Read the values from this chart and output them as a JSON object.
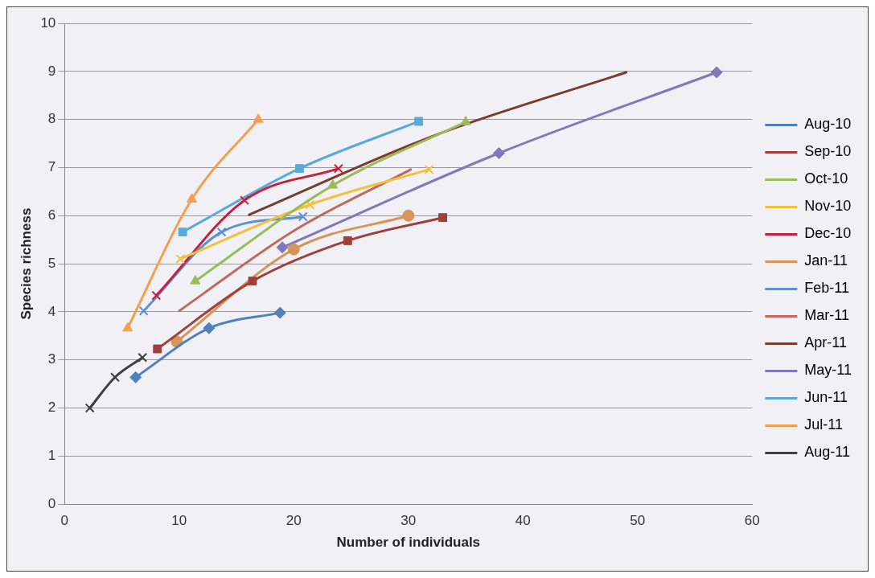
{
  "chart_data": {
    "type": "line",
    "xlabel": "Number of individuals",
    "ylabel": "Species richness",
    "xlim": [
      0,
      60
    ],
    "xticks": [
      0,
      10,
      20,
      30,
      40,
      50,
      60
    ],
    "ylim": [
      0,
      10
    ],
    "yticks": [
      0,
      1,
      2,
      3,
      4,
      5,
      6,
      7,
      8,
      9,
      10
    ],
    "grid": "y",
    "legend": "right",
    "line_style": "solid",
    "series": [
      {
        "name": "Aug-10",
        "color": "#4f81bd",
        "marker": "diamond",
        "x": [
          6.2,
          12.6,
          18.8
        ],
        "values": [
          2.64,
          3.66,
          3.98
        ]
      },
      {
        "name": "Sep-10",
        "color": "#a0403d",
        "marker": "square",
        "x": [
          8.1,
          16.4,
          24.7,
          33.0
        ],
        "values": [
          3.23,
          4.64,
          5.48,
          5.96
        ]
      },
      {
        "name": "Oct-10",
        "color": "#9bbb59",
        "marker": "triangle",
        "x": [
          11.4,
          23.4,
          35.0
        ],
        "values": [
          4.64,
          6.63,
          7.95
        ]
      },
      {
        "name": "Nov-10",
        "color": "#f2c040",
        "marker": "cross",
        "x": [
          10.1,
          21.4,
          31.8
        ],
        "values": [
          5.1,
          6.23,
          6.96
        ]
      },
      {
        "name": "Dec-10",
        "color": "#c8203c",
        "marker": "cross",
        "x": [
          8.0,
          15.7,
          23.9
        ],
        "values": [
          4.34,
          6.32,
          6.98
        ]
      },
      {
        "name": "Jan-11",
        "color": "#d8955a",
        "marker": "circle",
        "x": [
          9.8,
          20.0,
          30.0
        ],
        "values": [
          3.38,
          5.3,
          6.0
        ]
      },
      {
        "name": "Feb-11",
        "color": "#5b8fd6",
        "marker": "cross",
        "x": [
          6.9,
          13.7,
          20.8
        ],
        "values": [
          4.02,
          5.66,
          5.98
        ]
      },
      {
        "name": "Mar-11",
        "color": "#c06a5d",
        "marker": "none",
        "x": [
          10.0,
          20.1,
          30.2
        ],
        "values": [
          4.02,
          5.7,
          6.96
        ]
      },
      {
        "name": "Apr-11",
        "color": "#7a3b2e",
        "marker": "none",
        "x": [
          16.1,
          32.4,
          49.0
        ],
        "values": [
          6.02,
          7.68,
          8.98
        ]
      },
      {
        "name": "May-11",
        "color": "#8078b8",
        "marker": "diamond",
        "x": [
          19.0,
          37.9,
          56.9
        ],
        "values": [
          5.34,
          7.3,
          8.98
        ]
      },
      {
        "name": "Jun-11",
        "color": "#5aa9dc",
        "marker": "square",
        "x": [
          10.3,
          20.5,
          30.9
        ],
        "values": [
          5.66,
          6.98,
          7.96
        ]
      },
      {
        "name": "Jul-11",
        "color": "#f0a050",
        "marker": "triangle",
        "x": [
          5.5,
          11.1,
          16.9
        ],
        "values": [
          3.66,
          6.34,
          8.0
        ]
      },
      {
        "name": "Aug-11",
        "color": "#404040",
        "marker": "cross",
        "x": [
          2.2,
          4.4,
          6.8
        ],
        "values": [
          2.0,
          2.64,
          3.05
        ]
      }
    ]
  }
}
